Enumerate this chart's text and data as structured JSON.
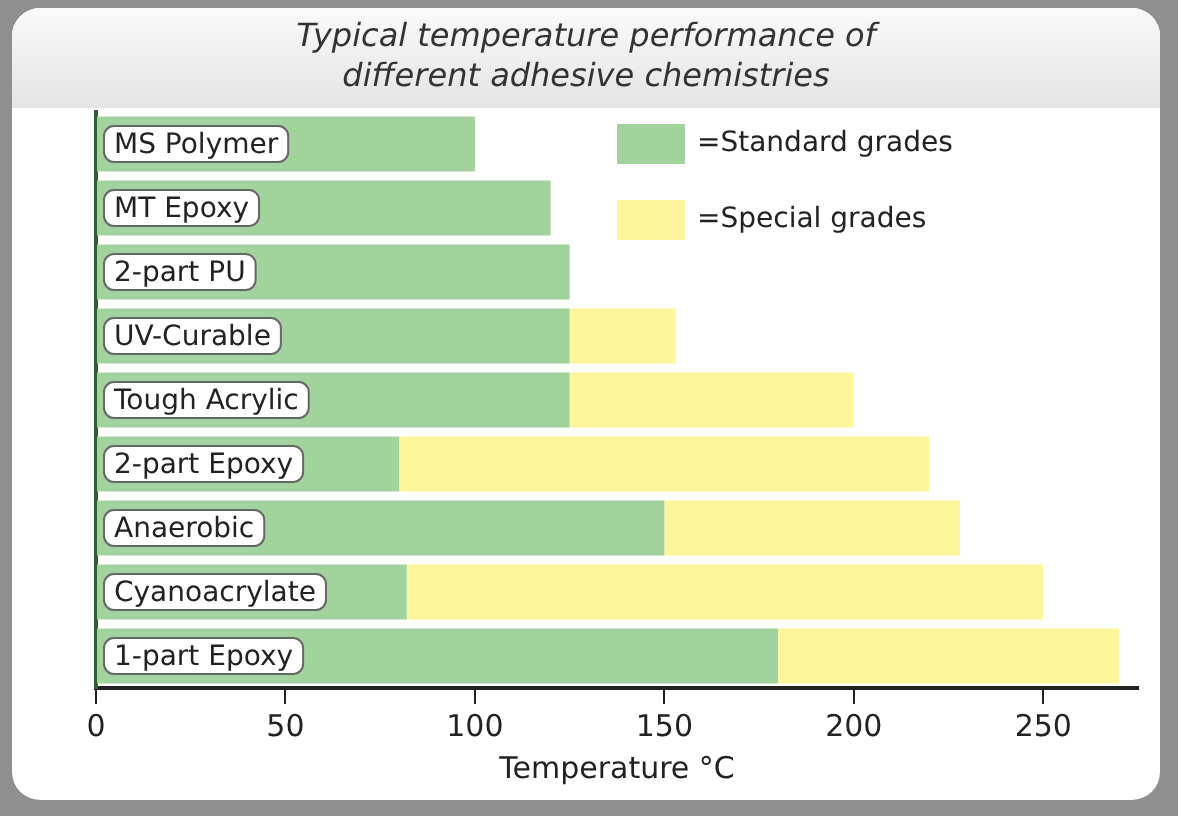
{
  "chart_data": {
    "type": "bar",
    "orientation": "horizontal",
    "stacked": true,
    "title": "Typical temperature performance of\ndifferent adhesive chemistries",
    "xlabel": "Temperature °C",
    "categories": [
      "MS Polymer",
      "MT Epoxy",
      "2-part PU",
      "UV-Curable",
      "Tough Acrylic",
      "2-part Epoxy",
      "Anaerobic",
      "Cyanoacrylate",
      "1-part Epoxy"
    ],
    "series": [
      {
        "name": "=Standard grades",
        "color": "#a3d39c",
        "values": [
          100,
          120,
          125,
          125,
          125,
          80,
          150,
          82,
          180
        ]
      },
      {
        "name": "=Special grades",
        "color": "#fff59d",
        "values": [
          null,
          null,
          null,
          28,
          75,
          140,
          78,
          168,
          90
        ]
      }
    ],
    "xlim": [
      0,
      275
    ],
    "xticks": [
      0,
      50,
      100,
      150,
      200,
      250
    ],
    "grid": false,
    "legend": "top right"
  }
}
